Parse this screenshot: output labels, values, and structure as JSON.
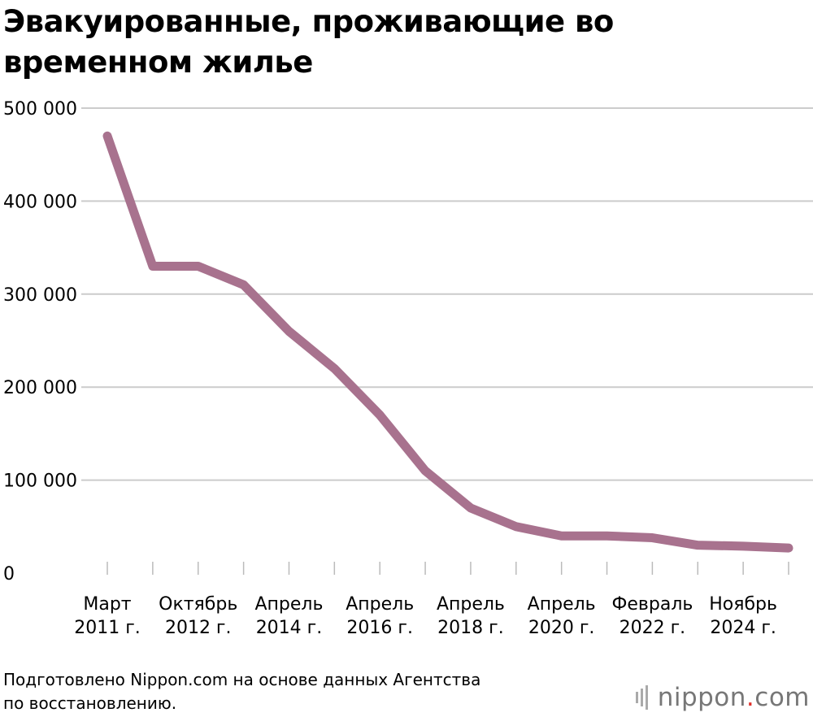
{
  "title_lines": [
    "Эвакуированные, проживающие во",
    "временном жилье"
  ],
  "source_lines": [
    "Подготовлено Nippon.com на основе данных Агентства",
    "по восстановлению."
  ],
  "logo": {
    "name": "nippon",
    "dot": ".",
    "tld": "com"
  },
  "colors": {
    "line": "#a8728e",
    "grid": "#cccccc",
    "tick": "#bbbbbb",
    "text": "#000000"
  },
  "chart_data": {
    "type": "line",
    "title": "Эвакуированные, проживающие во временном жилье",
    "ylim": [
      0,
      500000
    ],
    "yticks": [
      {
        "value": 0,
        "label": "0"
      },
      {
        "value": 100000,
        "label": "100 000"
      },
      {
        "value": 200000,
        "label": "200 000"
      },
      {
        "value": 300000,
        "label": "300 000"
      },
      {
        "value": 400000,
        "label": "400 000"
      },
      {
        "value": 500000,
        "label": "500 000"
      }
    ],
    "xlim": [
      0,
      15
    ],
    "xlabels": [
      {
        "index": 0,
        "line1": "Март",
        "line2": "2011 г."
      },
      {
        "index": 2,
        "line1": "Октябрь",
        "line2": "2012 г."
      },
      {
        "index": 4,
        "line1": "Апрель",
        "line2": "2014 г."
      },
      {
        "index": 6,
        "line1": "Апрель",
        "line2": "2016 г."
      },
      {
        "index": 8,
        "line1": "Апрель",
        "line2": "2018 г."
      },
      {
        "index": 10,
        "line1": "Апрель",
        "line2": "2020 г."
      },
      {
        "index": 12,
        "line1": "Февраль",
        "line2": "2022 г."
      },
      {
        "index": 14,
        "line1": "Ноябрь",
        "line2": "2024 г."
      }
    ],
    "grid": true,
    "series": [
      {
        "name": "Эвакуированные",
        "values": [
          470000,
          330000,
          330000,
          310000,
          260000,
          220000,
          170000,
          110000,
          70000,
          50000,
          40000,
          40000,
          38000,
          30000,
          29000,
          27000
        ]
      }
    ]
  }
}
